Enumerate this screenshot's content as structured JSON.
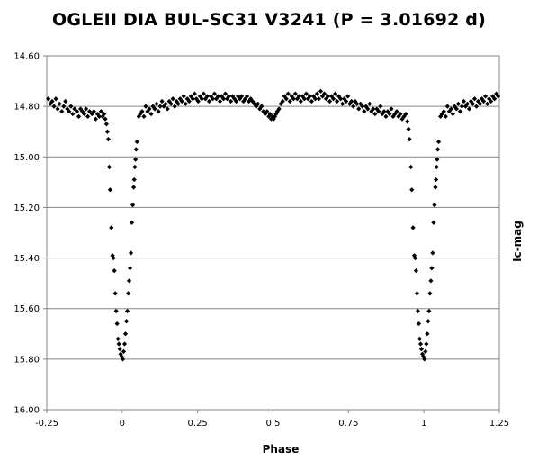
{
  "chart_data": {
    "type": "scatter",
    "title": "OGLEII DIA BUL-SC31 V3241 (P = 3.01692  d)",
    "xlabel": "Phase",
    "ylabel": "Ic-mag",
    "xlim": [
      -0.25,
      1.25
    ],
    "ylim": [
      14.6,
      16.0
    ],
    "y_inverted": true,
    "grid": "horizontal",
    "legend": "none",
    "marker_color": "#000000",
    "xticks": [
      "-0.25",
      "0",
      "0.25",
      "0.5",
      "0.75",
      "1",
      "1.25"
    ],
    "yticks": [
      "14.60",
      "14.80",
      "15.00",
      "15.20",
      "15.40",
      "15.60",
      "15.80",
      "16.00"
    ],
    "series": [
      {
        "points": [
          [
            -0.245,
            14.77
          ],
          [
            -0.238,
            14.79
          ],
          [
            -0.232,
            14.78
          ],
          [
            -0.226,
            14.8
          ],
          [
            -0.22,
            14.77
          ],
          [
            -0.214,
            14.81
          ],
          [
            -0.208,
            14.79
          ],
          [
            -0.2,
            14.82
          ],
          [
            -0.194,
            14.8
          ],
          [
            -0.188,
            14.78
          ],
          [
            -0.182,
            14.81
          ],
          [
            -0.176,
            14.82
          ],
          [
            -0.17,
            14.8
          ],
          [
            -0.164,
            14.83
          ],
          [
            -0.158,
            14.81
          ],
          [
            -0.15,
            14.82
          ],
          [
            -0.144,
            14.84
          ],
          [
            -0.138,
            14.81
          ],
          [
            -0.132,
            14.82
          ],
          [
            -0.126,
            14.83
          ],
          [
            -0.12,
            14.81
          ],
          [
            -0.114,
            14.84
          ],
          [
            -0.108,
            14.82
          ],
          [
            -0.1,
            14.83
          ],
          [
            -0.094,
            14.82
          ],
          [
            -0.088,
            14.85
          ],
          [
            -0.082,
            14.83
          ],
          [
            -0.076,
            14.84
          ],
          [
            -0.07,
            14.82
          ],
          [
            -0.065,
            14.84
          ],
          [
            -0.06,
            14.83
          ],
          [
            -0.056,
            14.85
          ],
          [
            -0.052,
            14.87
          ],
          [
            -0.049,
            14.9
          ],
          [
            -0.046,
            14.93
          ],
          [
            -0.043,
            15.04
          ],
          [
            -0.04,
            15.13
          ],
          [
            -0.036,
            15.28
          ],
          [
            -0.032,
            15.39
          ],
          [
            -0.029,
            15.4
          ],
          [
            -0.026,
            15.45
          ],
          [
            -0.023,
            15.54
          ],
          [
            -0.02,
            15.61
          ],
          [
            -0.017,
            15.66
          ],
          [
            -0.014,
            15.72
          ],
          [
            -0.011,
            15.74
          ],
          [
            -0.008,
            15.76
          ],
          [
            -0.005,
            15.78
          ],
          [
            -0.002,
            15.79
          ],
          [
            0.002,
            15.8
          ],
          [
            0.005,
            15.77
          ],
          [
            0.008,
            15.74
          ],
          [
            0.011,
            15.7
          ],
          [
            0.014,
            15.65
          ],
          [
            0.017,
            15.61
          ],
          [
            0.02,
            15.54
          ],
          [
            0.023,
            15.49
          ],
          [
            0.026,
            15.44
          ],
          [
            0.029,
            15.38
          ],
          [
            0.032,
            15.26
          ],
          [
            0.035,
            15.19
          ],
          [
            0.038,
            15.12
          ],
          [
            0.04,
            15.09
          ],
          [
            0.042,
            15.04
          ],
          [
            0.044,
            15.01
          ],
          [
            0.046,
            14.97
          ],
          [
            0.049,
            14.94
          ],
          [
            0.055,
            14.84
          ],
          [
            0.06,
            14.83
          ],
          [
            0.066,
            14.82
          ],
          [
            0.072,
            14.84
          ],
          [
            0.078,
            14.8
          ],
          [
            0.084,
            14.82
          ],
          [
            0.09,
            14.81
          ],
          [
            0.096,
            14.83
          ],
          [
            0.102,
            14.8
          ],
          [
            0.108,
            14.81
          ],
          [
            0.114,
            14.79
          ],
          [
            0.12,
            14.82
          ],
          [
            0.126,
            14.8
          ],
          [
            0.132,
            14.78
          ],
          [
            0.138,
            14.8
          ],
          [
            0.144,
            14.79
          ],
          [
            0.15,
            14.81
          ],
          [
            0.156,
            14.78
          ],
          [
            0.162,
            14.79
          ],
          [
            0.168,
            14.77
          ],
          [
            0.174,
            14.8
          ],
          [
            0.18,
            14.78
          ],
          [
            0.186,
            14.79
          ],
          [
            0.192,
            14.77
          ],
          [
            0.198,
            14.78
          ],
          [
            0.204,
            14.76
          ],
          [
            0.21,
            14.79
          ],
          [
            0.216,
            14.77
          ],
          [
            0.222,
            14.78
          ],
          [
            0.228,
            14.76
          ],
          [
            0.234,
            14.77
          ],
          [
            0.24,
            14.75
          ],
          [
            0.246,
            14.77
          ],
          [
            0.252,
            14.78
          ],
          [
            0.258,
            14.76
          ],
          [
            0.264,
            14.77
          ],
          [
            0.27,
            14.75
          ],
          [
            0.276,
            14.77
          ],
          [
            0.282,
            14.76
          ],
          [
            0.288,
            14.78
          ],
          [
            0.294,
            14.76
          ],
          [
            0.3,
            14.77
          ],
          [
            0.306,
            14.75
          ],
          [
            0.312,
            14.77
          ],
          [
            0.318,
            14.76
          ],
          [
            0.324,
            14.78
          ],
          [
            0.33,
            14.76
          ],
          [
            0.336,
            14.77
          ],
          [
            0.342,
            14.75
          ],
          [
            0.348,
            14.77
          ],
          [
            0.354,
            14.76
          ],
          [
            0.36,
            14.78
          ],
          [
            0.366,
            14.76
          ],
          [
            0.372,
            14.77
          ],
          [
            0.378,
            14.78
          ],
          [
            0.384,
            14.76
          ],
          [
            0.39,
            14.77
          ],
          [
            0.396,
            14.76
          ],
          [
            0.402,
            14.78
          ],
          [
            0.408,
            14.77
          ],
          [
            0.414,
            14.76
          ],
          [
            0.42,
            14.78
          ],
          [
            0.426,
            14.77
          ],
          [
            0.432,
            14.78
          ],
          [
            0.438,
            14.79
          ],
          [
            0.444,
            14.8
          ],
          [
            0.45,
            14.79
          ],
          [
            0.456,
            14.81
          ],
          [
            0.462,
            14.8
          ],
          [
            0.468,
            14.82
          ],
          [
            0.474,
            14.83
          ],
          [
            0.48,
            14.82
          ],
          [
            0.486,
            14.84
          ],
          [
            0.49,
            14.83
          ],
          [
            0.494,
            14.85
          ],
          [
            0.498,
            14.84
          ],
          [
            0.502,
            14.85
          ],
          [
            0.506,
            14.84
          ],
          [
            0.51,
            14.83
          ],
          [
            0.514,
            14.82
          ],
          [
            0.52,
            14.81
          ],
          [
            0.526,
            14.79
          ],
          [
            0.532,
            14.78
          ],
          [
            0.538,
            14.76
          ],
          [
            0.544,
            14.77
          ],
          [
            0.55,
            14.75
          ],
          [
            0.556,
            14.78
          ],
          [
            0.562,
            14.76
          ],
          [
            0.568,
            14.77
          ],
          [
            0.574,
            14.75
          ],
          [
            0.58,
            14.77
          ],
          [
            0.586,
            14.76
          ],
          [
            0.592,
            14.78
          ],
          [
            0.598,
            14.76
          ],
          [
            0.604,
            14.77
          ],
          [
            0.61,
            14.75
          ],
          [
            0.616,
            14.77
          ],
          [
            0.622,
            14.76
          ],
          [
            0.628,
            14.78
          ],
          [
            0.634,
            14.76
          ],
          [
            0.64,
            14.77
          ],
          [
            0.646,
            14.75
          ],
          [
            0.652,
            14.77
          ],
          [
            0.658,
            14.74
          ],
          [
            0.664,
            14.76
          ],
          [
            0.67,
            14.75
          ],
          [
            0.676,
            14.77
          ],
          [
            0.682,
            14.76
          ],
          [
            0.688,
            14.78
          ],
          [
            0.694,
            14.76
          ],
          [
            0.7,
            14.77
          ],
          [
            0.706,
            14.75
          ],
          [
            0.712,
            14.78
          ],
          [
            0.718,
            14.76
          ],
          [
            0.724,
            14.77
          ],
          [
            0.73,
            14.79
          ],
          [
            0.736,
            14.77
          ],
          [
            0.742,
            14.78
          ],
          [
            0.748,
            14.76
          ],
          [
            0.754,
            14.79
          ],
          [
            0.76,
            14.78
          ],
          [
            0.766,
            14.8
          ],
          [
            0.772,
            14.78
          ],
          [
            0.778,
            14.79
          ],
          [
            0.784,
            14.81
          ],
          [
            0.79,
            14.79
          ],
          [
            0.796,
            14.8
          ],
          [
            0.802,
            14.82
          ],
          [
            0.808,
            14.8
          ],
          [
            0.814,
            14.81
          ],
          [
            0.82,
            14.79
          ],
          [
            0.826,
            14.82
          ],
          [
            0.832,
            14.81
          ],
          [
            0.838,
            14.83
          ],
          [
            0.844,
            14.81
          ],
          [
            0.85,
            14.82
          ],
          [
            0.856,
            14.8
          ],
          [
            0.862,
            14.83
          ],
          [
            0.868,
            14.82
          ],
          [
            0.874,
            14.84
          ],
          [
            0.88,
            14.82
          ],
          [
            0.886,
            14.83
          ],
          [
            0.892,
            14.81
          ],
          [
            0.898,
            14.84
          ],
          [
            0.904,
            14.83
          ],
          [
            0.91,
            14.82
          ],
          [
            0.916,
            14.84
          ],
          [
            0.922,
            14.83
          ],
          [
            0.928,
            14.85
          ],
          [
            0.934,
            14.84
          ],
          [
            0.94,
            14.83
          ],
          [
            0.945,
            14.86
          ],
          [
            0.949,
            14.89
          ],
          [
            0.952,
            14.93
          ],
          [
            0.957,
            15.04
          ],
          [
            0.96,
            15.13
          ],
          [
            0.964,
            15.28
          ],
          [
            0.968,
            15.39
          ],
          [
            0.971,
            15.4
          ],
          [
            0.974,
            15.45
          ],
          [
            0.977,
            15.54
          ],
          [
            0.98,
            15.61
          ],
          [
            0.983,
            15.66
          ],
          [
            0.986,
            15.72
          ],
          [
            0.989,
            15.74
          ],
          [
            0.992,
            15.76
          ],
          [
            0.995,
            15.78
          ],
          [
            0.998,
            15.79
          ],
          [
            1.002,
            15.8
          ],
          [
            1.005,
            15.77
          ],
          [
            1.008,
            15.74
          ],
          [
            1.011,
            15.7
          ],
          [
            1.014,
            15.65
          ],
          [
            1.017,
            15.61
          ],
          [
            1.02,
            15.54
          ],
          [
            1.023,
            15.49
          ],
          [
            1.026,
            15.44
          ],
          [
            1.029,
            15.38
          ],
          [
            1.032,
            15.26
          ],
          [
            1.035,
            15.19
          ],
          [
            1.038,
            15.12
          ],
          [
            1.04,
            15.09
          ],
          [
            1.042,
            15.04
          ],
          [
            1.044,
            15.01
          ],
          [
            1.046,
            14.97
          ],
          [
            1.049,
            14.94
          ],
          [
            1.055,
            14.84
          ],
          [
            1.06,
            14.83
          ],
          [
            1.066,
            14.82
          ],
          [
            1.072,
            14.84
          ],
          [
            1.078,
            14.8
          ],
          [
            1.084,
            14.82
          ],
          [
            1.09,
            14.81
          ],
          [
            1.096,
            14.83
          ],
          [
            1.102,
            14.8
          ],
          [
            1.108,
            14.81
          ],
          [
            1.114,
            14.79
          ],
          [
            1.12,
            14.82
          ],
          [
            1.126,
            14.8
          ],
          [
            1.132,
            14.78
          ],
          [
            1.138,
            14.8
          ],
          [
            1.144,
            14.79
          ],
          [
            1.15,
            14.81
          ],
          [
            1.156,
            14.78
          ],
          [
            1.162,
            14.79
          ],
          [
            1.168,
            14.77
          ],
          [
            1.174,
            14.8
          ],
          [
            1.18,
            14.78
          ],
          [
            1.186,
            14.79
          ],
          [
            1.192,
            14.77
          ],
          [
            1.198,
            14.78
          ],
          [
            1.204,
            14.76
          ],
          [
            1.21,
            14.79
          ],
          [
            1.216,
            14.77
          ],
          [
            1.222,
            14.78
          ],
          [
            1.228,
            14.76
          ],
          [
            1.234,
            14.77
          ],
          [
            1.24,
            14.75
          ],
          [
            1.246,
            14.76
          ]
        ]
      }
    ]
  }
}
